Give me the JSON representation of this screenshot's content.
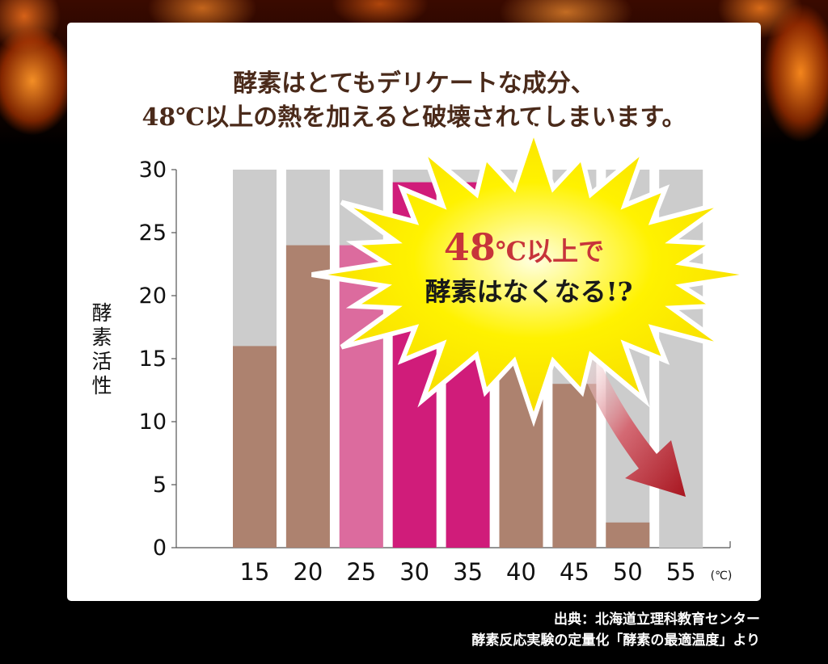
{
  "headline": {
    "line1": "酵素はとてもデリケートな成分、",
    "line2": "48℃以上の熱を加えると破壊されてしまいます。"
  },
  "callout": {
    "big": "48",
    "rest": "℃以上で",
    "line2": "酵素はなくなる!?"
  },
  "source": {
    "line1": "出典：北海道立理科教育センター",
    "line2": "酵素反応実験の定量化「酵素の最適温度」より"
  },
  "colors": {
    "bar_brown": "#ad826f",
    "bar_gray": "#cccccc",
    "highlight_light": "#dc6b9e",
    "highlight_dark": "#d01c7a",
    "callout_fill": "#fff200",
    "arrow": "#b01e2a"
  },
  "chart_data": {
    "type": "bar",
    "categories": [
      "15",
      "20",
      "25",
      "30",
      "35",
      "40",
      "45",
      "50",
      "55"
    ],
    "values": [
      16,
      24,
      24,
      29,
      29,
      22,
      13,
      2,
      0
    ],
    "max_values": [
      30,
      30,
      30,
      30,
      30,
      30,
      30,
      30,
      30
    ],
    "ylabel": "酵素活性",
    "x_unit": "(℃)",
    "ylim": [
      0,
      30
    ],
    "yticks": [
      "0",
      "5",
      "10",
      "15",
      "20",
      "25",
      "30"
    ]
  }
}
